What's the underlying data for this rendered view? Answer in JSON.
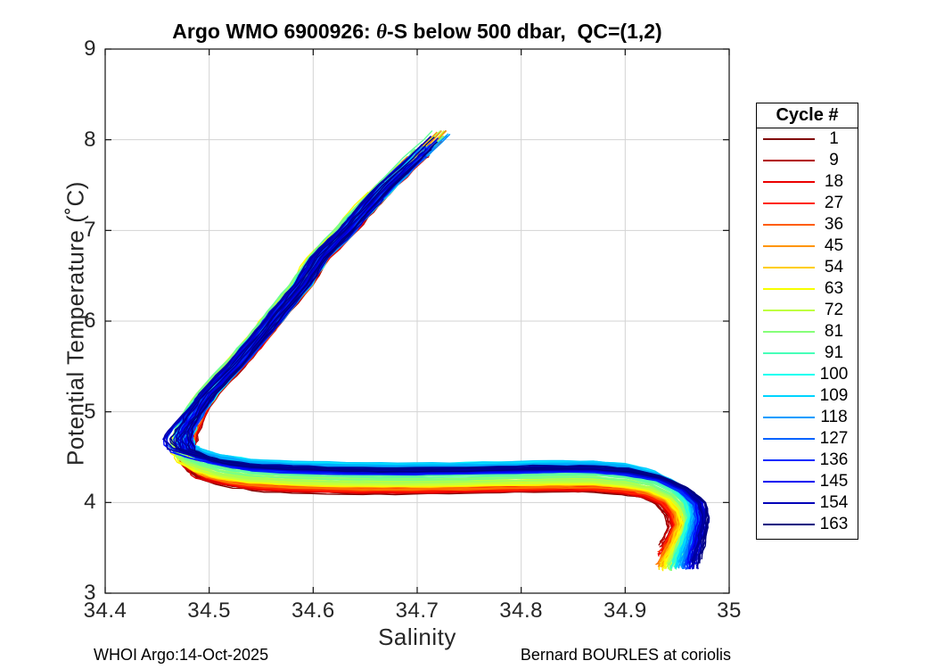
{
  "figure": {
    "title": {
      "prefix": "Argo WMO 6900926: ",
      "theta_symbol": "θ",
      "suffix": "-S below 500 dbar,  QC=(1,2)"
    },
    "footer_left": "WHOI Argo:14-Oct-2025",
    "footer_right": "Bernard BOURLES at coriolis",
    "background": "#ffffff"
  },
  "chart_data": {
    "type": "line",
    "title": "Argo WMO 6900926: θ-S below 500 dbar,  QC=(1,2)",
    "xlabel": "Salinity",
    "ylabel": "Potential Temperature (˚C)",
    "xlim": [
      34.4,
      35
    ],
    "ylim": [
      3,
      9
    ],
    "xticks": [
      34.4,
      34.5,
      34.6,
      34.7,
      34.8,
      34.9,
      35
    ],
    "xtick_labels": [
      "34.4",
      "34.5",
      "34.6",
      "34.7",
      "34.8",
      "34.9",
      "35"
    ],
    "yticks": [
      3,
      4,
      5,
      6,
      7,
      8,
      9
    ],
    "ytick_labels": [
      "3",
      "4",
      "5",
      "6",
      "7",
      "8",
      "9"
    ],
    "grid": true,
    "grid_color": "#d3d3d3",
    "axis_color": "#111111",
    "label_color": "#262626",
    "profiles": {
      "count": 163,
      "cycle_first": 1,
      "cycle_last": 163,
      "colormap": "reversed-jet (cycle 1 dark red → cycle 163 dark navy)"
    },
    "base_profile_theta_s": [
      [
        34.727,
        8.1
      ],
      [
        34.7,
        7.8
      ],
      [
        34.672,
        7.5
      ],
      [
        34.648,
        7.2
      ],
      [
        34.633,
        7.0
      ],
      [
        34.607,
        6.7
      ],
      [
        34.59,
        6.4
      ],
      [
        34.568,
        6.1
      ],
      [
        34.547,
        5.8
      ],
      [
        34.525,
        5.5
      ],
      [
        34.5,
        5.2
      ],
      [
        34.488,
        5.0
      ],
      [
        34.479,
        4.8
      ],
      [
        34.476,
        4.65
      ],
      [
        34.48,
        4.52
      ],
      [
        34.492,
        4.44
      ],
      [
        34.512,
        4.37
      ],
      [
        34.54,
        4.32
      ],
      [
        34.58,
        4.295
      ],
      [
        34.63,
        4.28
      ],
      [
        34.68,
        4.275
      ],
      [
        34.73,
        4.28
      ],
      [
        34.78,
        4.29
      ],
      [
        34.83,
        4.3
      ],
      [
        34.87,
        4.3
      ],
      [
        34.9,
        4.27
      ],
      [
        34.925,
        4.21
      ],
      [
        34.945,
        4.1
      ],
      [
        34.957,
        3.95
      ],
      [
        34.96,
        3.8
      ],
      [
        34.955,
        3.65
      ],
      [
        34.948,
        3.5
      ],
      [
        34.941,
        3.35
      ],
      [
        34.937,
        3.25
      ]
    ],
    "legend": {
      "title": "Cycle #",
      "position": "right-outside",
      "entries": [
        1,
        9,
        18,
        27,
        36,
        45,
        54,
        63,
        72,
        81,
        91,
        100,
        109,
        118,
        127,
        136,
        145,
        154,
        163
      ],
      "colors": [
        "#800000",
        "#B20000",
        "#EB0000",
        "#FF2400",
        "#FF5D00",
        "#FF9500",
        "#FFCE00",
        "#F7FF00",
        "#BFFF41",
        "#86FF79",
        "#47FFB8",
        "#0EFFF1",
        "#00D4FF",
        "#009CFF",
        "#0063FF",
        "#002BFF",
        "#0000F1",
        "#0000B8",
        "#000080"
      ]
    }
  }
}
